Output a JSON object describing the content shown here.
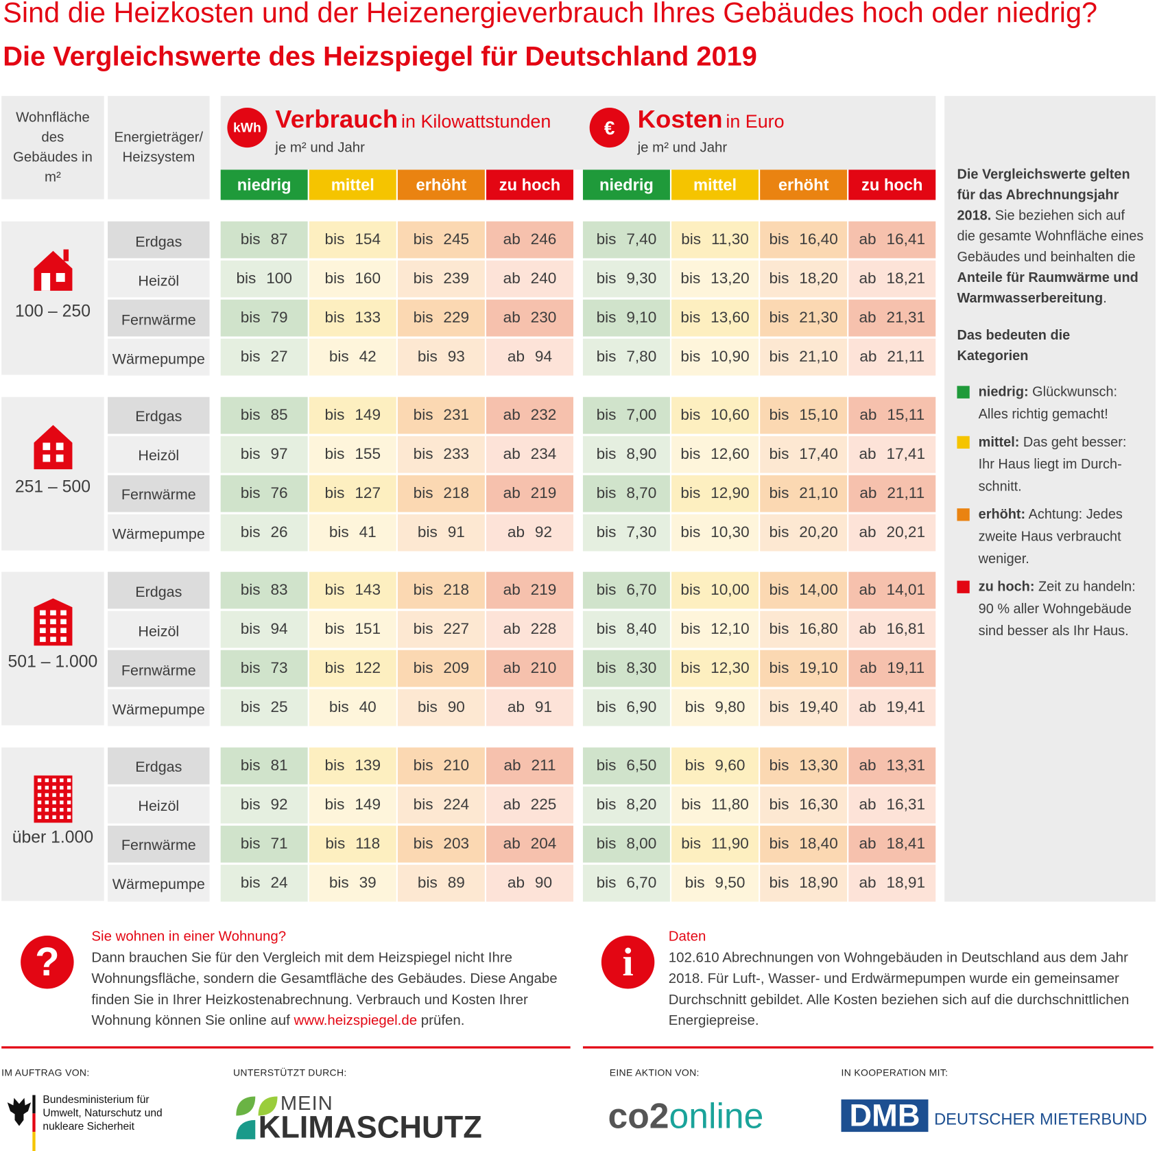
{
  "header": {
    "title": "Sind die Heizkosten und der Heizenergieverbrauch Ihres Gebäudes hoch oder niedrig?",
    "subtitle": "Die Vergleichswerte des Heizspiegel für Deutschland 2019"
  },
  "table": {
    "col_area": "Wohnfläche des Gebäudes in m²",
    "col_energy": "Energieträger/ Heizsystem",
    "consumption": {
      "badge": "kWh",
      "title": "Verbrauch",
      "unit": "in Kilowattstunden",
      "sub": "je m² und Jahr"
    },
    "costs": {
      "badge": "€",
      "title": "Kosten",
      "unit": "in Euro",
      "sub": "je m² und Jahr"
    },
    "categories": [
      "niedrig",
      "mittel",
      "erhöht",
      "zu hoch"
    ],
    "groups": [
      {
        "area": "100 – 250",
        "rows": [
          {
            "energy": "Erdgas",
            "consumption": [
              "bis 87",
              "bis 154",
              "bis 245",
              "ab 246"
            ],
            "costs": [
              "bis 7,40",
              "bis 11,30",
              "bis 16,40",
              "ab 16,41"
            ]
          },
          {
            "energy": "Heizöl",
            "consumption": [
              "bis 100",
              "bis 160",
              "bis 239",
              "ab 240"
            ],
            "costs": [
              "bis 9,30",
              "bis 13,20",
              "bis 18,20",
              "ab 18,21"
            ]
          },
          {
            "energy": "Fernwärme",
            "consumption": [
              "bis 79",
              "bis 133",
              "bis 229",
              "ab 230"
            ],
            "costs": [
              "bis 9,10",
              "bis 13,60",
              "bis 21,30",
              "ab 21,31"
            ]
          },
          {
            "energy": "Wärmepumpe",
            "consumption": [
              "bis 27",
              "bis 42",
              "bis 93",
              "ab 94"
            ],
            "costs": [
              "bis 7,80",
              "bis 10,90",
              "bis 21,10",
              "ab 21,11"
            ]
          }
        ]
      },
      {
        "area": "251 – 500",
        "rows": [
          {
            "energy": "Erdgas",
            "consumption": [
              "bis 85",
              "bis 149",
              "bis 231",
              "ab 232"
            ],
            "costs": [
              "bis 7,00",
              "bis 10,60",
              "bis 15,10",
              "ab 15,11"
            ]
          },
          {
            "energy": "Heizöl",
            "consumption": [
              "bis 97",
              "bis 155",
              "bis 233",
              "ab 234"
            ],
            "costs": [
              "bis 8,90",
              "bis 12,60",
              "bis 17,40",
              "ab 17,41"
            ]
          },
          {
            "energy": "Fernwärme",
            "consumption": [
              "bis 76",
              "bis 127",
              "bis 218",
              "ab 219"
            ],
            "costs": [
              "bis 8,70",
              "bis 12,90",
              "bis 21,10",
              "ab 21,11"
            ]
          },
          {
            "energy": "Wärmepumpe",
            "consumption": [
              "bis 26",
              "bis 41",
              "bis 91",
              "ab 92"
            ],
            "costs": [
              "bis 7,30",
              "bis 10,30",
              "bis 20,20",
              "ab 20,21"
            ]
          }
        ]
      },
      {
        "area": "501 – 1.000",
        "rows": [
          {
            "energy": "Erdgas",
            "consumption": [
              "bis 83",
              "bis 143",
              "bis 218",
              "ab 219"
            ],
            "costs": [
              "bis 6,70",
              "bis 10,00",
              "bis 14,00",
              "ab 14,01"
            ]
          },
          {
            "energy": "Heizöl",
            "consumption": [
              "bis 94",
              "bis 151",
              "bis 227",
              "ab 228"
            ],
            "costs": [
              "bis 8,40",
              "bis 12,10",
              "bis 16,80",
              "ab 16,81"
            ]
          },
          {
            "energy": "Fernwärme",
            "consumption": [
              "bis 73",
              "bis 122",
              "bis 209",
              "ab 210"
            ],
            "costs": [
              "bis 8,30",
              "bis 12,30",
              "bis 19,10",
              "ab 19,11"
            ]
          },
          {
            "energy": "Wärmepumpe",
            "consumption": [
              "bis 25",
              "bis 40",
              "bis 90",
              "ab 91"
            ],
            "costs": [
              "bis 6,90",
              "bis 9,80",
              "bis 19,40",
              "ab 19,41"
            ]
          }
        ]
      },
      {
        "area": "über 1.000",
        "rows": [
          {
            "energy": "Erdgas",
            "consumption": [
              "bis 81",
              "bis 139",
              "bis 210",
              "ab 211"
            ],
            "costs": [
              "bis 6,50",
              "bis 9,60",
              "bis 13,30",
              "ab 13,31"
            ]
          },
          {
            "energy": "Heizöl",
            "consumption": [
              "bis 92",
              "bis 149",
              "bis 224",
              "ab 225"
            ],
            "costs": [
              "bis 8,20",
              "bis 11,80",
              "bis 16,30",
              "ab 16,31"
            ]
          },
          {
            "energy": "Fernwärme",
            "consumption": [
              "bis 71",
              "bis 118",
              "bis 203",
              "ab 204"
            ],
            "costs": [
              "bis 8,00",
              "bis 11,90",
              "bis 18,40",
              "ab 18,41"
            ]
          },
          {
            "energy": "Wärmepumpe",
            "consumption": [
              "bis 24",
              "bis 39",
              "bis 89",
              "ab 90"
            ],
            "costs": [
              "bis 6,70",
              "bis 9,50",
              "bis 18,90",
              "ab 18,91"
            ]
          }
        ]
      }
    ]
  },
  "sidebar": {
    "intro_bold": "Die Vergleichswerte gelten für das Abrechnungsjahr 2018.",
    "intro_text": "Sie beziehen sich auf die gesamte Wohnfläche eines Gebäudes und beinhalten die",
    "intro_emph": "Anteile für Raumwärme und Warmwasserbereitung",
    "intro_end": ".",
    "legend_title": "Das bedeuten die Kategorien",
    "legend": [
      {
        "label": "niedrig:",
        "text": "Glückwunsch: Alles richtig gemacht!"
      },
      {
        "label": "mittel:",
        "text": "Das geht besser: Ihr Haus liegt im Durch-schnitt."
      },
      {
        "label": "erhöht:",
        "text": "Achtung: Jedes zweite Haus verbraucht weniger."
      },
      {
        "label": "zu hoch:",
        "text": "Zeit zu handeln: 90 % aller Wohngebäude sind besser als Ihr Haus."
      }
    ]
  },
  "notes": {
    "left": {
      "icon": "?",
      "title": "Sie wohnen in einer Wohnung?",
      "text": "Dann brauchen Sie für den Vergleich mit dem Heizspiegel nicht Ihre Wohnungsfläche, sondern die Gesamtfläche des Gebäudes. Diese Angabe finden Sie in Ihrer Heizkostenabrechnung. Verbrauch und Kosten Ihrer Wohnung können Sie online auf",
      "link": "www.heizspiegel.de",
      "end": "prüfen."
    },
    "right": {
      "icon": "i",
      "title": "Daten",
      "text": "102.610 Abrechnungen von Wohngebäuden in Deutschland aus dem Jahr 2018. Für Luft-, Wasser- und Erdwärmepumpen wurde ein gemeinsamer Durchschnitt gebildet. Alle Kosten beziehen sich auf die durchschnittlichen Energiepreise."
    }
  },
  "footer": {
    "labels": [
      "IM AUFTRAG VON:",
      "UNTERSTÜTZT DURCH:",
      "EINE AKTION VON:",
      "IN KOOPERATION MIT:"
    ],
    "bmu": "Bundesministerium für Umwelt, Naturschutz und nukleare Sicherheit",
    "mk_top": "MEIN",
    "mk_bottom": "KLIMASCHUTZ",
    "co2_a": "co2",
    "co2_b": "online",
    "dmb": "DMB",
    "dmb_name": "DEUTSCHER MIETERBUND"
  }
}
